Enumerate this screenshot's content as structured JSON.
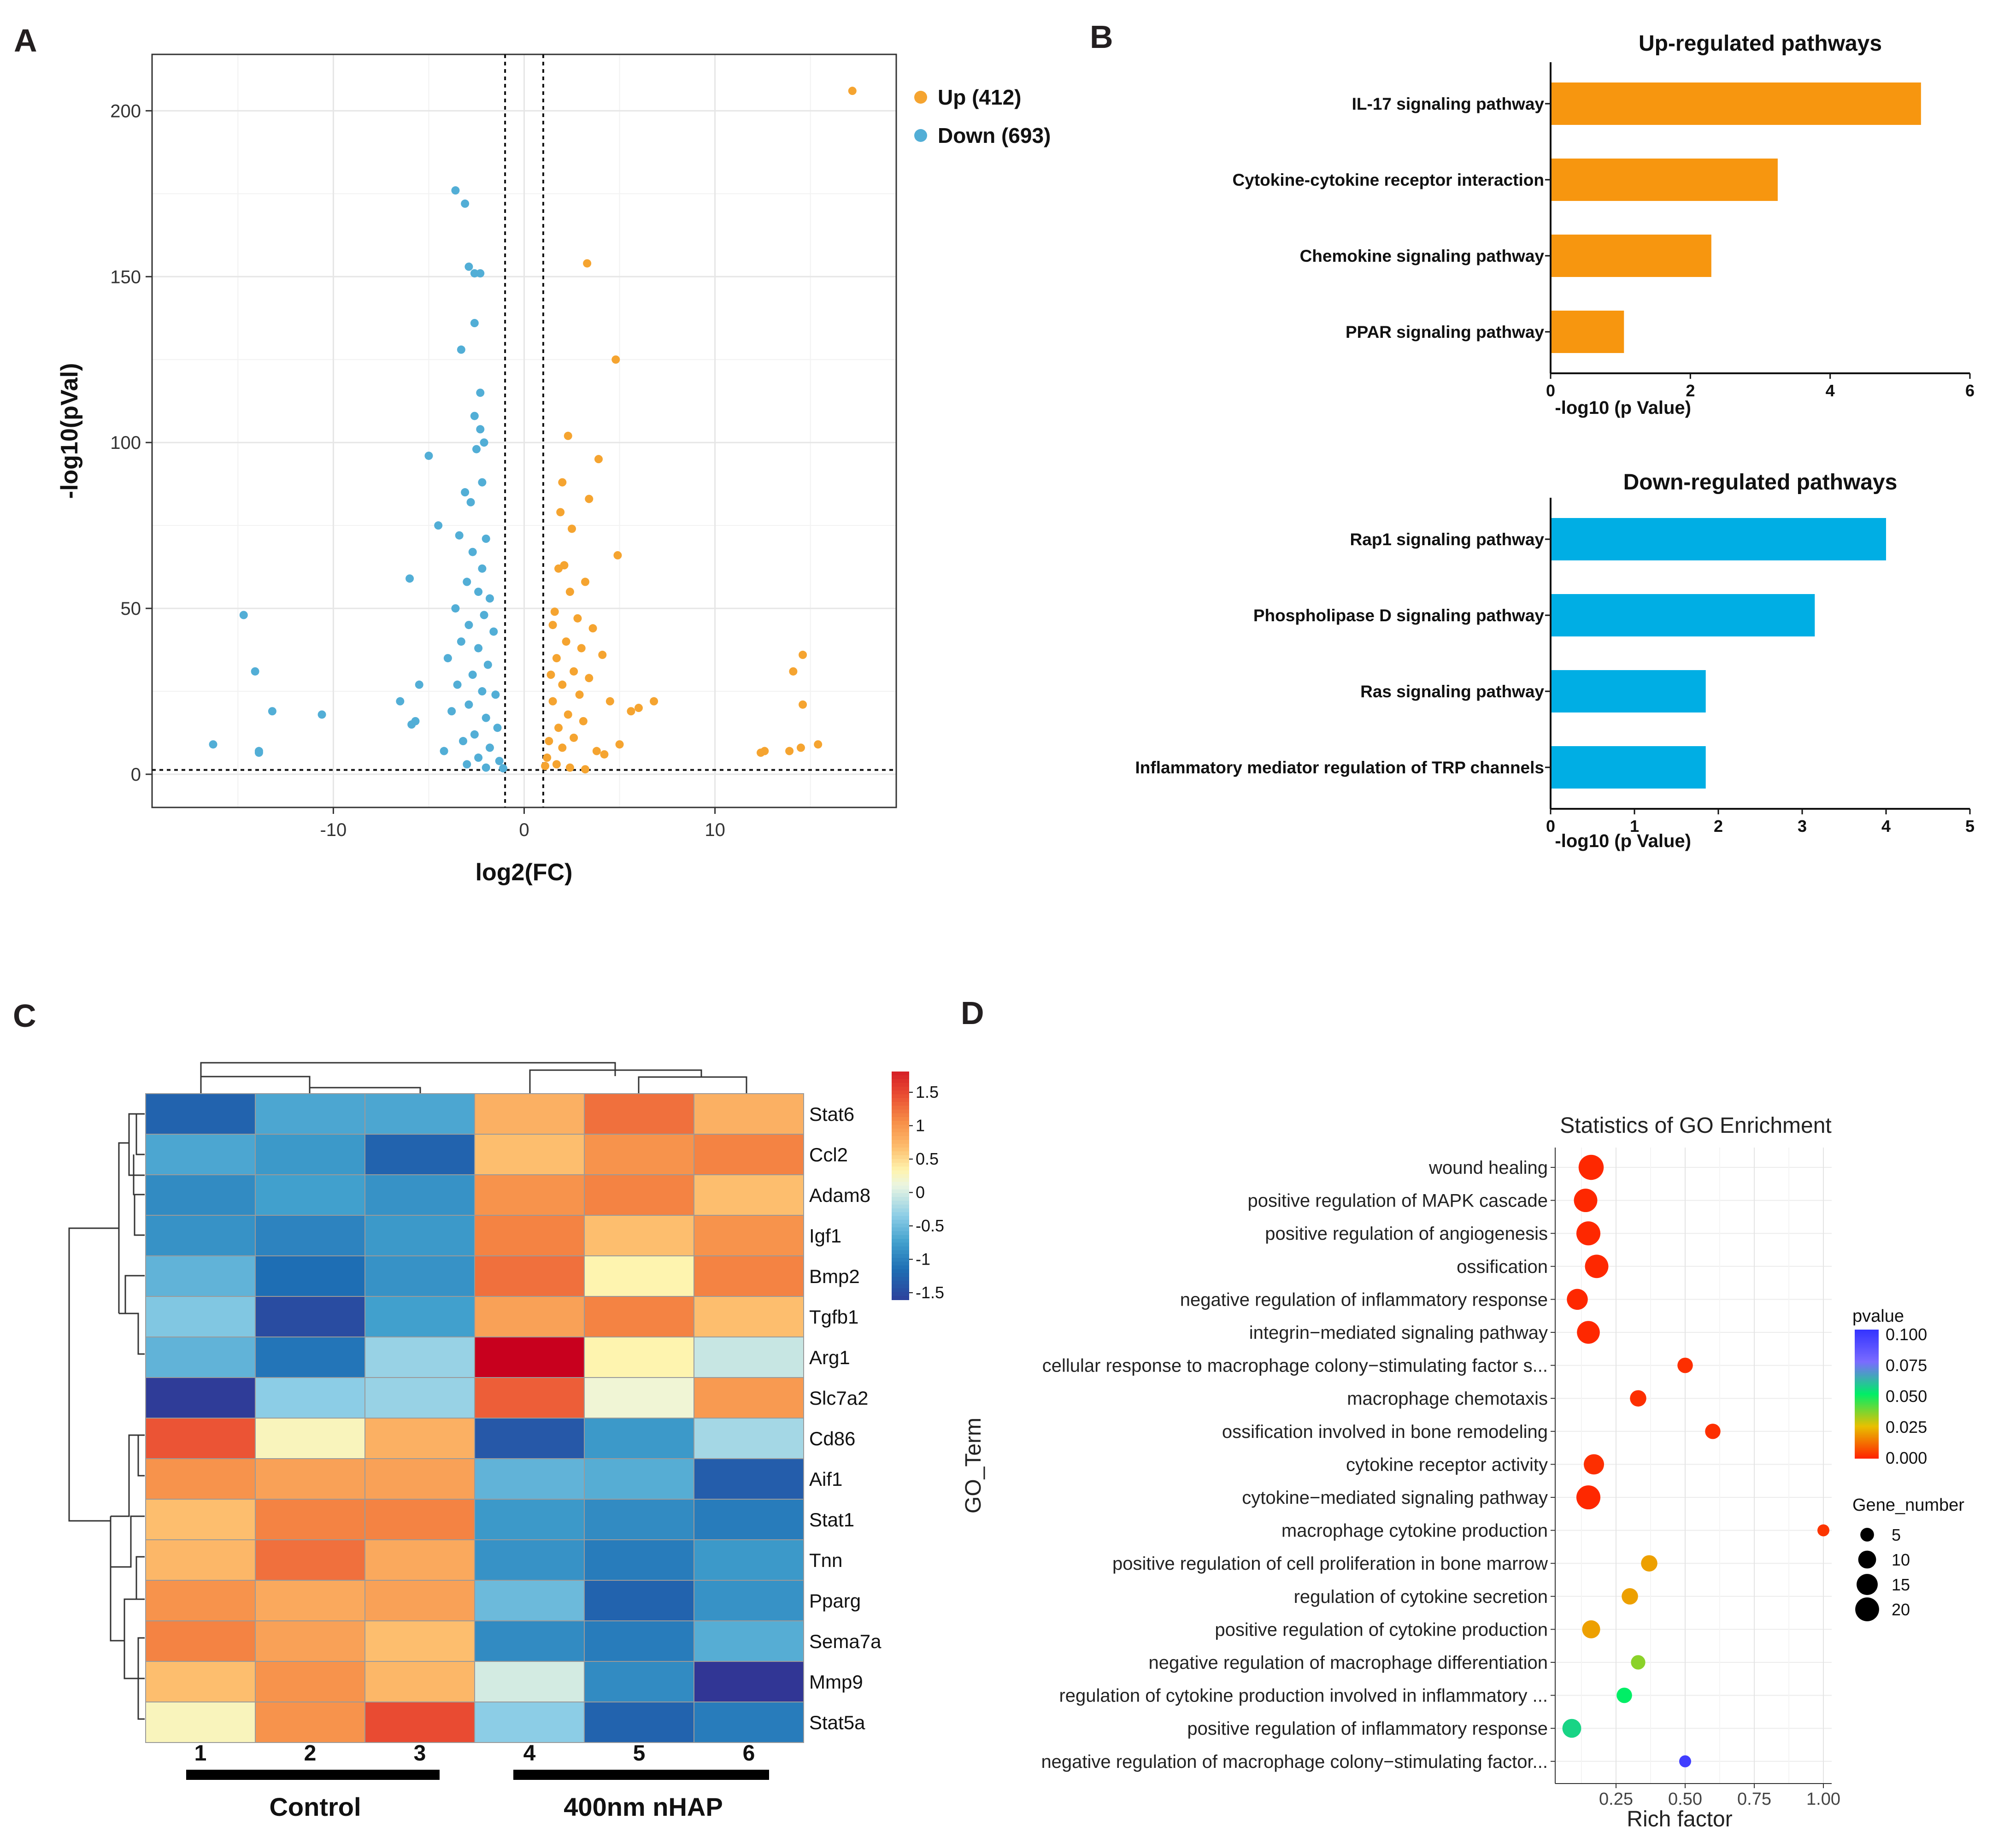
{
  "panels": {
    "a": "A",
    "b": "B",
    "c": "C",
    "d": "D"
  },
  "colors": {
    "up": "#f5a430",
    "down": "#52aed6",
    "bar_up": "#f7960f",
    "bar_down": "#00aee4"
  },
  "volcano": {
    "type": "scatter",
    "xlabel": "log2(FC)",
    "ylabel": "-log10(pVal)",
    "xlim": [
      -19.5,
      19.5
    ],
    "ylim": [
      -10,
      217
    ],
    "xticks": [
      -10,
      0,
      10
    ],
    "yticks": [
      0,
      50,
      100,
      150,
      200
    ],
    "x_threshold": [
      -1,
      1
    ],
    "y_threshold": 1.3,
    "legend": [
      {
        "name": "Up (412)",
        "color": "#f5a430"
      },
      {
        "name": "Down (693)",
        "color": "#52aed6"
      }
    ],
    "up_points": [
      [
        17.2,
        206
      ],
      [
        3.3,
        154
      ],
      [
        4.8,
        125
      ],
      [
        2.3,
        102
      ],
      [
        3.9,
        95
      ],
      [
        2.0,
        88
      ],
      [
        3.4,
        83
      ],
      [
        1.9,
        79
      ],
      [
        2.5,
        74
      ],
      [
        4.9,
        66
      ],
      [
        1.8,
        62
      ],
      [
        2.1,
        63
      ],
      [
        3.2,
        58
      ],
      [
        2.4,
        55
      ],
      [
        1.6,
        49
      ],
      [
        2.8,
        47
      ],
      [
        3.6,
        44
      ],
      [
        1.5,
        45
      ],
      [
        2.2,
        40
      ],
      [
        3.0,
        38
      ],
      [
        4.1,
        36
      ],
      [
        1.7,
        35
      ],
      [
        2.6,
        31
      ],
      [
        3.4,
        29
      ],
      [
        1.4,
        30
      ],
      [
        2.0,
        27
      ],
      [
        2.9,
        24
      ],
      [
        4.5,
        22
      ],
      [
        6.0,
        20
      ],
      [
        5.6,
        19
      ],
      [
        6.8,
        22
      ],
      [
        1.5,
        22
      ],
      [
        2.3,
        18
      ],
      [
        3.1,
        16
      ],
      [
        1.8,
        14
      ],
      [
        2.6,
        11
      ],
      [
        1.3,
        10
      ],
      [
        2.0,
        8
      ],
      [
        3.8,
        7
      ],
      [
        4.2,
        6
      ],
      [
        5.0,
        9
      ],
      [
        1.2,
        5
      ],
      [
        1.7,
        3
      ],
      [
        2.4,
        2
      ],
      [
        3.2,
        1.5
      ],
      [
        1.1,
        2.5
      ],
      [
        14.6,
        36
      ],
      [
        14.1,
        31
      ],
      [
        14.6,
        21
      ],
      [
        15.4,
        9
      ],
      [
        14.5,
        8
      ],
      [
        13.9,
        7
      ],
      [
        12.6,
        7
      ],
      [
        12.4,
        6.5
      ]
    ],
    "down_points": [
      [
        -3.6,
        176
      ],
      [
        -3.1,
        172
      ],
      [
        -2.9,
        153
      ],
      [
        -2.6,
        151
      ],
      [
        -2.3,
        151
      ],
      [
        -2.6,
        136
      ],
      [
        -3.3,
        128
      ],
      [
        -2.3,
        115
      ],
      [
        -2.6,
        108
      ],
      [
        -2.3,
        104
      ],
      [
        -2.1,
        100
      ],
      [
        -2.5,
        98
      ],
      [
        -5.0,
        96
      ],
      [
        -2.2,
        88
      ],
      [
        -3.1,
        85
      ],
      [
        -2.8,
        82
      ],
      [
        -4.5,
        75
      ],
      [
        -3.4,
        72
      ],
      [
        -2.0,
        71
      ],
      [
        -2.7,
        67
      ],
      [
        -2.2,
        62
      ],
      [
        -6.0,
        59
      ],
      [
        -3.0,
        58
      ],
      [
        -2.4,
        55
      ],
      [
        -1.8,
        53
      ],
      [
        -3.6,
        50
      ],
      [
        -2.1,
        48
      ],
      [
        -2.9,
        45
      ],
      [
        -1.6,
        43
      ],
      [
        -3.3,
        40
      ],
      [
        -2.4,
        38
      ],
      [
        -4.0,
        35
      ],
      [
        -1.9,
        33
      ],
      [
        -2.7,
        30
      ],
      [
        -3.5,
        27
      ],
      [
        -2.2,
        25
      ],
      [
        -1.5,
        24
      ],
      [
        -2.9,
        21
      ],
      [
        -3.8,
        19
      ],
      [
        -2.0,
        17
      ],
      [
        -1.4,
        14
      ],
      [
        -2.6,
        12
      ],
      [
        -3.2,
        10
      ],
      [
        -1.8,
        8
      ],
      [
        -4.2,
        7
      ],
      [
        -2.4,
        5
      ],
      [
        -1.3,
        4
      ],
      [
        -3.0,
        3
      ],
      [
        -2.0,
        2
      ],
      [
        -1.1,
        1.8
      ],
      [
        -5.7,
        16
      ],
      [
        -5.9,
        15
      ],
      [
        -6.5,
        22
      ],
      [
        -5.5,
        27
      ],
      [
        -14.7,
        48
      ],
      [
        -14.1,
        31
      ],
      [
        -13.2,
        19
      ],
      [
        -10.6,
        18
      ],
      [
        -16.3,
        9
      ],
      [
        -13.9,
        7
      ],
      [
        -13.9,
        6.5
      ]
    ]
  },
  "pathways_up": {
    "type": "bar",
    "title": "Up-regulated pathways",
    "xlabel": "-log10 (p Value)",
    "xlim": [
      0,
      6
    ],
    "xticks": [
      0,
      2,
      4,
      6
    ],
    "categories": [
      "IL-17 signaling pathway",
      "Cytokine-cytokine receptor interaction",
      "Chemokine signaling pathway",
      "PPAR signaling pathway"
    ],
    "values": [
      5.3,
      3.25,
      2.3,
      1.05
    ]
  },
  "pathways_down": {
    "type": "bar",
    "title": "Down-regulated pathways",
    "xlabel": "-log10 (p Value)",
    "xlim": [
      0,
      5
    ],
    "xticks": [
      0,
      1,
      2,
      3,
      4,
      5
    ],
    "categories": [
      "Rap1 signaling pathway",
      "Phospholipase D signaling pathway",
      "Ras signaling pathway",
      "Inflammatory mediator regulation of TRP channels"
    ],
    "values": [
      4.0,
      3.15,
      1.85,
      1.85
    ]
  },
  "heatmap": {
    "type": "heatmap",
    "genes": [
      "Stat6",
      "Ccl2",
      "Adam8",
      "Igf1",
      "Bmp2",
      "Tgfb1",
      "Arg1",
      "Slc7a2",
      "Cd86",
      "Aif1",
      "Stat1",
      "Tnn",
      "Pparg",
      "Sema7a",
      "Mmp9",
      "Stat5a"
    ],
    "samples": [
      "1",
      "2",
      "3",
      "4",
      "5",
      "6"
    ],
    "groups": [
      {
        "name": "Control",
        "samples": [
          1,
          2,
          3
        ]
      },
      {
        "name": "400nm nHAP",
        "samples": [
          4,
          5,
          6
        ]
      }
    ],
    "color_range": [
      -1.5,
      1.5
    ],
    "colorbar_ticks": [
      "1.5",
      "1",
      "0.5",
      "0",
      "-0.5",
      "-1",
      "-1.5"
    ],
    "values": [
      [
        -1.2,
        -0.7,
        -0.7,
        0.6,
        1.0,
        0.6
      ],
      [
        -0.7,
        -0.8,
        -1.2,
        0.5,
        0.8,
        0.9
      ],
      [
        -0.9,
        -0.75,
        -0.85,
        0.8,
        0.9,
        0.5
      ],
      [
        -0.85,
        -0.95,
        -0.8,
        0.9,
        0.5,
        0.8
      ],
      [
        -0.6,
        -1.1,
        -0.85,
        1.0,
        0.2,
        0.9
      ],
      [
        -0.45,
        -1.4,
        -0.75,
        0.7,
        0.9,
        0.5
      ],
      [
        -0.6,
        -1.05,
        -0.35,
        1.7,
        0.2,
        -0.15
      ],
      [
        -1.55,
        -0.4,
        -0.35,
        1.1,
        0.05,
        0.75
      ],
      [
        1.15,
        0.15,
        0.6,
        -1.3,
        -0.8,
        -0.3
      ],
      [
        0.8,
        0.7,
        0.7,
        -0.6,
        -0.65,
        -1.25
      ],
      [
        0.5,
        0.9,
        0.9,
        -0.8,
        -0.9,
        -1.0
      ],
      [
        0.55,
        1.0,
        0.65,
        -0.85,
        -1.0,
        -0.8
      ],
      [
        0.8,
        0.65,
        0.7,
        -0.55,
        -1.2,
        -0.85
      ],
      [
        0.9,
        0.7,
        0.5,
        -0.9,
        -1.0,
        -0.65
      ],
      [
        0.5,
        0.8,
        0.55,
        -0.1,
        -0.9,
        -1.6
      ],
      [
        0.15,
        0.8,
        1.2,
        -0.4,
        -1.2,
        -1.0
      ]
    ]
  },
  "go": {
    "type": "scatter",
    "title": "Statistics of GO Enrichment",
    "xlabel": "Rich factor",
    "ylabel": "GO_Term",
    "xlim": [
      0.03,
      1.03
    ],
    "xticks": [
      "0.25",
      "0.50",
      "0.75",
      "1.00"
    ],
    "legend_color_title": "pvalue",
    "legend_color_ticks": [
      "0.100",
      "0.075",
      "0.050",
      "0.025",
      "0.000"
    ],
    "legend_size_title": "Gene_number",
    "legend_size_ticks": [
      "5",
      "10",
      "15",
      "20"
    ],
    "terms": [
      "wound healing",
      "positive regulation of MAPK cascade",
      "positive regulation of angiogenesis",
      "ossification",
      "negative regulation of inflammatory response",
      "integrin−mediated signaling pathway",
      "cellular response to macrophage colony−stimulating factor s...",
      "macrophage chemotaxis",
      "ossification involved in bone remodeling",
      "cytokine receptor activity",
      "cytokine−mediated signaling pathway",
      "macrophage cytokine production",
      "positive regulation of cell proliferation in bone marrow",
      "regulation of cytokine secretion",
      "positive regulation of cytokine production",
      "negative regulation of macrophage differentiation",
      "regulation of cytokine production involved in inflammatory ...",
      "positive regulation of inflammatory response",
      "negative regulation of macrophage colony−stimulating factor..."
    ],
    "rich_factor": [
      0.16,
      0.14,
      0.15,
      0.18,
      0.11,
      0.15,
      0.5,
      0.33,
      0.6,
      0.17,
      0.15,
      1.0,
      0.37,
      0.3,
      0.16,
      0.33,
      0.28,
      0.09,
      0.5
    ],
    "gene_number": [
      20,
      17,
      18,
      17,
      13,
      16,
      6,
      7,
      6,
      12,
      18,
      3,
      7,
      7,
      9,
      5,
      6,
      10,
      3
    ],
    "pvalue": [
      0.001,
      0.001,
      0.001,
      0.001,
      0.001,
      0.001,
      0.002,
      0.002,
      0.002,
      0.002,
      0.001,
      0.003,
      0.02,
      0.02,
      0.02,
      0.035,
      0.05,
      0.055,
      0.095
    ]
  }
}
